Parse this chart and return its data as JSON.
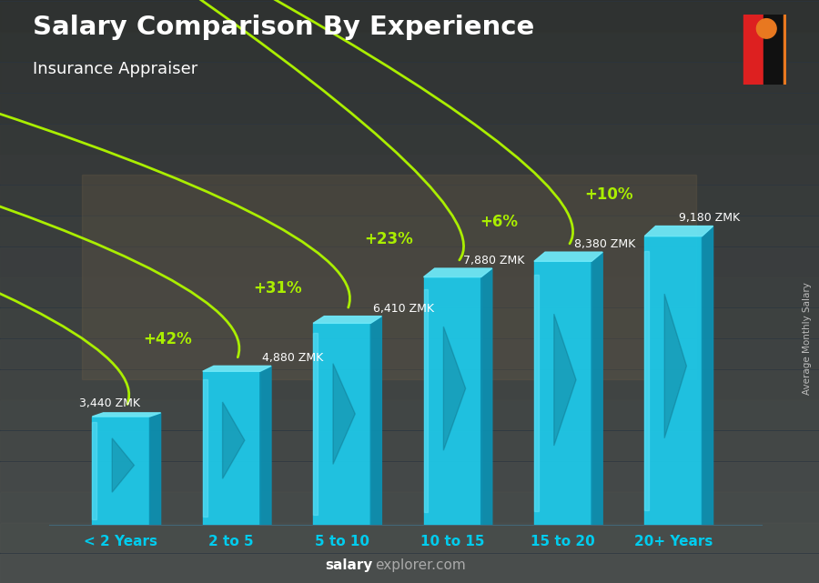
{
  "title": "Salary Comparison By Experience",
  "subtitle": "Insurance Appraiser",
  "categories": [
    "< 2 Years",
    "2 to 5",
    "5 to 10",
    "10 to 15",
    "15 to 20",
    "20+ Years"
  ],
  "values": [
    3440,
    4880,
    6410,
    7880,
    8380,
    9180
  ],
  "value_labels": [
    "3,440 ZMK",
    "4,880 ZMK",
    "6,410 ZMK",
    "7,880 ZMK",
    "8,380 ZMK",
    "9,180 ZMK"
  ],
  "pct_labels": [
    "+42%",
    "+31%",
    "+23%",
    "+6%",
    "+10%"
  ],
  "bar_color_front": "#1ec8e8",
  "bar_color_side": "#0d8fb0",
  "bar_color_highlight": "#6ee8f8",
  "bar_color_dark": "#0a6080",
  "bg_color": "#2a3540",
  "title_color": "#ffffff",
  "subtitle_color": "#ffffff",
  "value_label_color": "#ffffff",
  "pct_color": "#aaee00",
  "arrow_color": "#aaee00",
  "xlabel_color": "#00ccee",
  "footer_salary_color": "#ffffff",
  "footer_explorer_color": "#aaaaaa",
  "footer_text_salary": "salary",
  "footer_text_rest": "explorer.com",
  "ylabel_text": "Average Monthly Salary",
  "ylabel_color": "#bbbbbb",
  "ylim_max": 11500,
  "flag_green": "#4a9e1a",
  "flag_red": "#dd2020",
  "flag_black": "#111111",
  "flag_orange": "#e87820"
}
